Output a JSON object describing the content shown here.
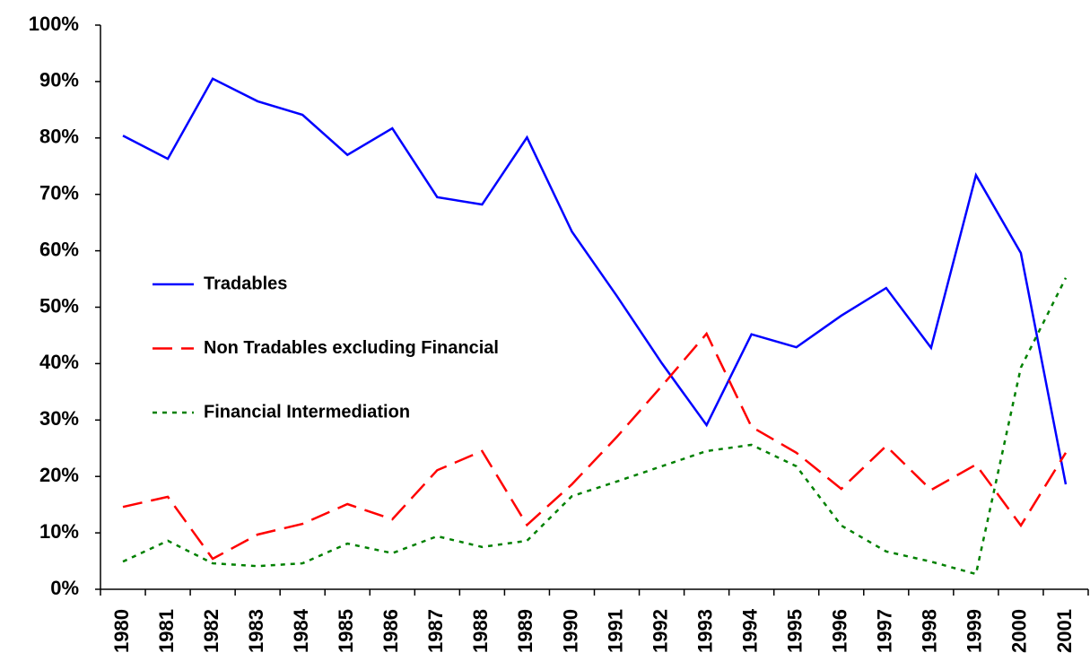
{
  "chart_data": {
    "type": "line",
    "categories": [
      "1980",
      "1981",
      "1982",
      "1983",
      "1984",
      "1985",
      "1986",
      "1987",
      "1988",
      "1989",
      "1990",
      "1991",
      "1992",
      "1993",
      "1994",
      "1995",
      "1996",
      "1997",
      "1998",
      "1999",
      "2000",
      "2001"
    ],
    "series": [
      {
        "name": "Tradables",
        "color": "#0000ff",
        "dash": "solid",
        "values": [
          80.4,
          76.3,
          90.5,
          86.5,
          84.1,
          77.0,
          81.7,
          69.5,
          68.2,
          80.1,
          63.4,
          52.0,
          40.1,
          29.1,
          45.2,
          42.9,
          48.5,
          53.4,
          42.8,
          73.4,
          59.6,
          18.6
        ]
      },
      {
        "name": "Non Tradables excluding Financial",
        "color": "#ff0000",
        "dash": "dashed",
        "values": [
          14.6,
          16.4,
          5.4,
          9.7,
          11.6,
          15.1,
          12.4,
          21.1,
          24.5,
          11.4,
          18.6,
          27.0,
          36.0,
          45.3,
          28.8,
          24.2,
          17.8,
          25.4,
          17.6,
          22.1,
          11.3,
          24.2
        ]
      },
      {
        "name": "Financial Intermediation",
        "color": "#008000",
        "dash": "dotted",
        "values": [
          4.9,
          8.6,
          4.6,
          4.1,
          4.6,
          8.1,
          6.4,
          9.4,
          7.5,
          8.6,
          16.5,
          19.1,
          21.8,
          24.5,
          25.6,
          21.8,
          11.3,
          6.7,
          4.9,
          2.7,
          39.3,
          55.2
        ]
      }
    ],
    "ylim": [
      0,
      100
    ],
    "yticks": [
      {
        "value": 0,
        "label": "0%"
      },
      {
        "value": 10,
        "label": "10%"
      },
      {
        "value": 20,
        "label": "20%"
      },
      {
        "value": 30,
        "label": "30%"
      },
      {
        "value": 40,
        "label": "40%"
      },
      {
        "value": 50,
        "label": "50%"
      },
      {
        "value": 60,
        "label": "60%"
      },
      {
        "value": 70,
        "label": "70%"
      },
      {
        "value": 80,
        "label": "80%"
      },
      {
        "value": 90,
        "label": "90%"
      },
      {
        "value": 100,
        "label": "100%"
      }
    ],
    "grid": false,
    "legend": "left"
  }
}
